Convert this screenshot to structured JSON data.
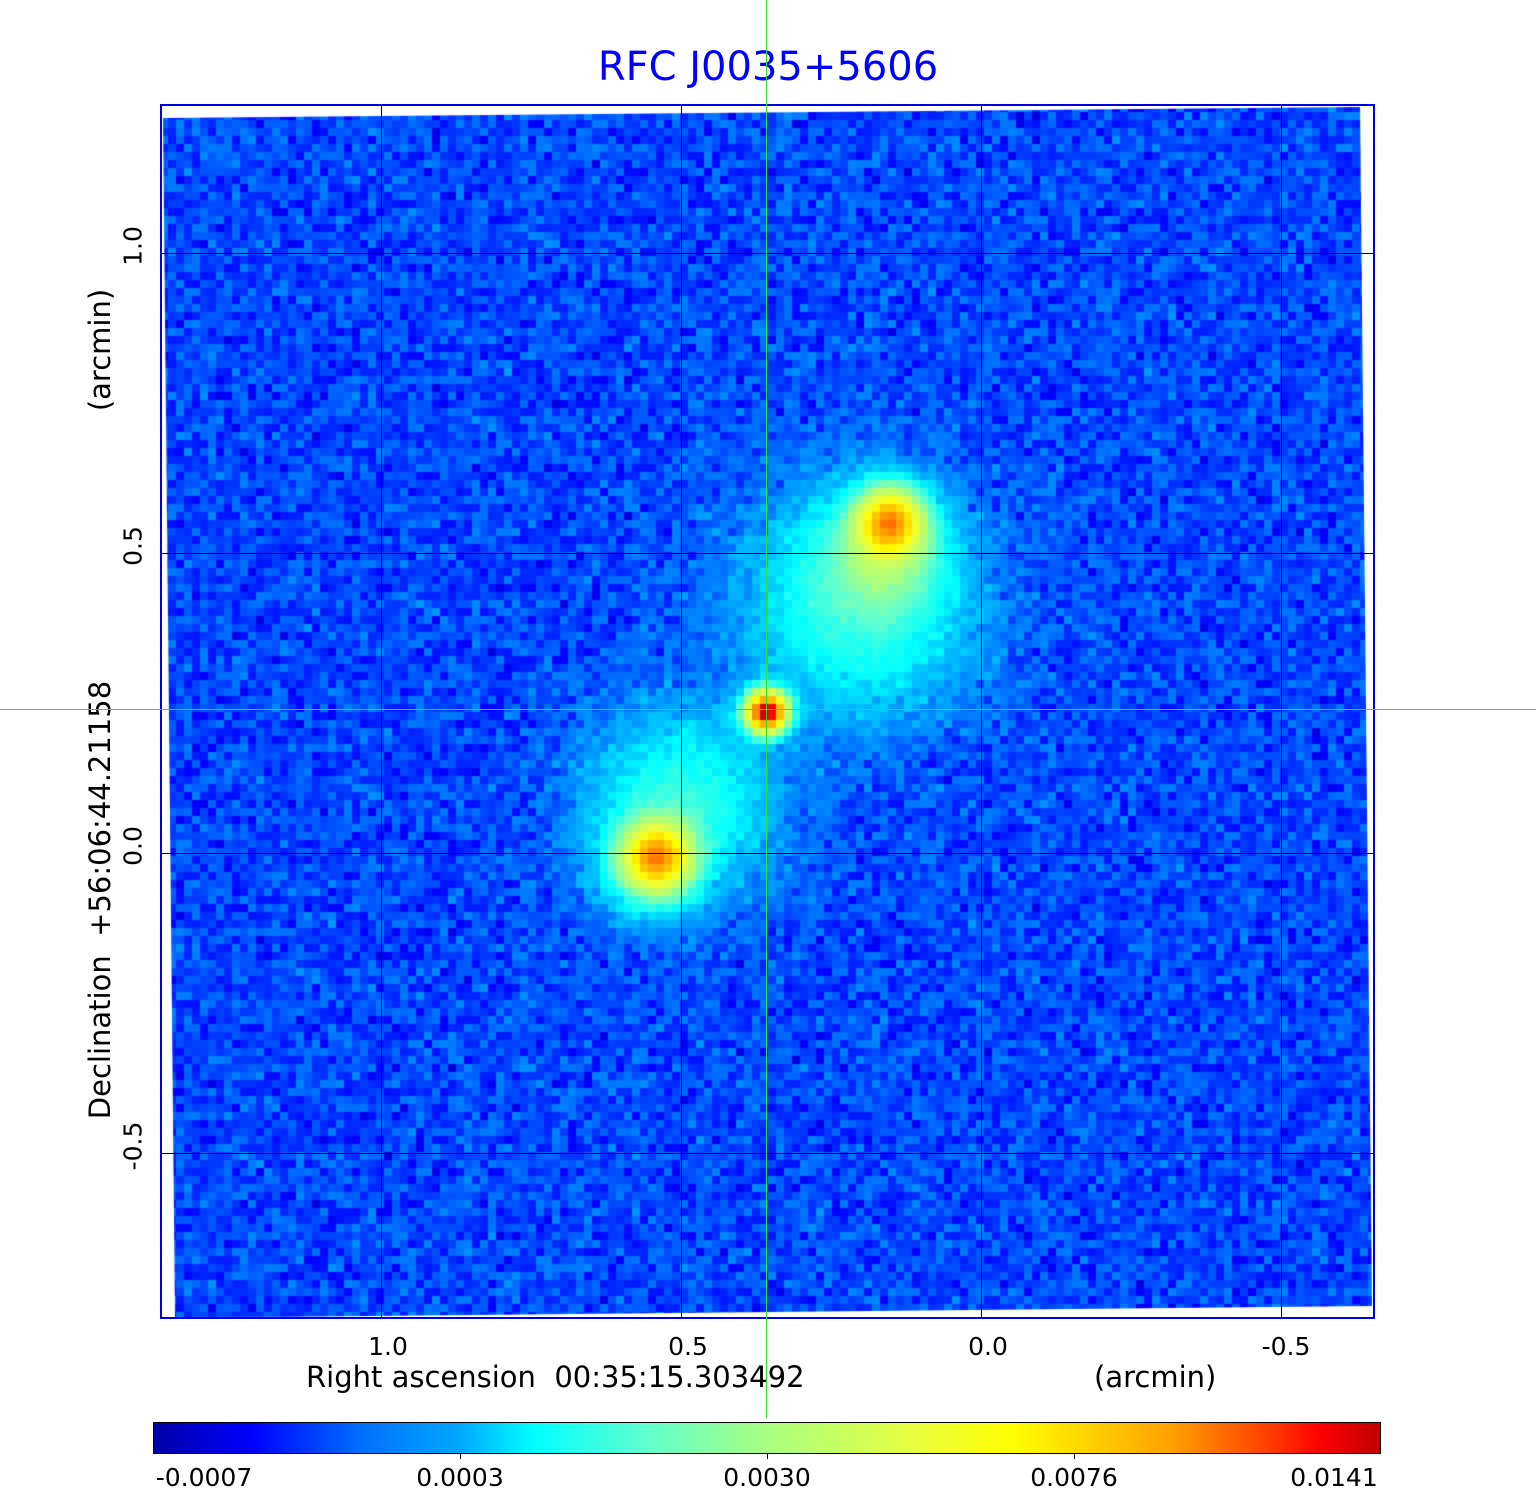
{
  "chart_data": {
    "type": "heatmap",
    "title": "RFC J0035+5606",
    "xlabel": "Right ascension  00:35:15.303492",
    "xunit": "(arcmin)",
    "ylabel": "Declination  +56:06:44.21158",
    "yunit": "(arcmin)",
    "xlim": [
      1.37,
      -0.66
    ],
    "ylim": [
      -0.78,
      1.25
    ],
    "xticks": [
      "1.0",
      "0.5",
      "0.0",
      "-0.5"
    ],
    "xtick_values": [
      1.0,
      0.5,
      0.0,
      -0.5
    ],
    "yticks": [
      "1.0",
      "0.5",
      "0.0",
      "-0.5"
    ],
    "ytick_values": [
      1.0,
      0.5,
      0.0,
      -0.5
    ],
    "grid": true,
    "crosshair": [
      0.357,
      0.24
    ],
    "sources": [
      {
        "x": 0.152,
        "y": 0.552,
        "peak": 0.0085
      },
      {
        "x": 0.357,
        "y": 0.235,
        "peak": 0.0141
      },
      {
        "x": 0.54,
        "y": -0.007,
        "peak": 0.008
      }
    ],
    "colorbar": {
      "ticks": [
        "-0.0007",
        "0.0003",
        "0.0030",
        "0.0076",
        "0.0141"
      ],
      "tick_values": [
        -0.0007,
        0.0003,
        0.003,
        0.0076,
        0.0141
      ]
    }
  }
}
